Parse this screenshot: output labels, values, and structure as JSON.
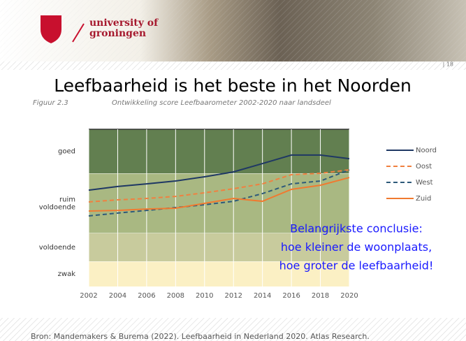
{
  "slide": {
    "logo_lines": [
      "university of",
      "groningen"
    ],
    "page_number": "| 18",
    "title": "Leefbaarheid is het beste in het Noorden",
    "source": "Bron: Mandemakers & Burema (2022). Leefbaarheid in Nederland 2020. Atlas Research."
  },
  "chart_data": {
    "type": "line",
    "figure_label": "Figuur 2.3",
    "title": "Ontwikkeling score Leefbaarometer 2002-2020 naar landsdeel",
    "x": [
      2002,
      2004,
      2006,
      2008,
      2010,
      2012,
      2014,
      2016,
      2018,
      2020
    ],
    "xlim": [
      2002,
      2020
    ],
    "xticks": [
      2002,
      2004,
      2006,
      2008,
      2010,
      2012,
      2014,
      2016,
      2018,
      2020
    ],
    "ylim": [
      0,
      10
    ],
    "bands": [
      {
        "label": [
          "zwak"
        ],
        "from": 0,
        "to": 1.6,
        "color": "#fbf0c4"
      },
      {
        "label": [
          "voldoende"
        ],
        "from": 1.6,
        "to": 3.4,
        "color": "#c8cb9d"
      },
      {
        "label": [
          "ruim",
          "voldoende"
        ],
        "from": 3.4,
        "to": 7.2,
        "color": "#a9b882"
      },
      {
        "label": [
          "goed"
        ],
        "from": 7.2,
        "to": 10,
        "color": "#627f50"
      }
    ],
    "series": [
      {
        "name": "Noord",
        "color": "#1f3864",
        "dash": false,
        "values": [
          6.13,
          6.36,
          6.53,
          6.71,
          6.98,
          7.29,
          7.82,
          8.36,
          8.36,
          8.13
        ]
      },
      {
        "name": "Oost",
        "color": "#f08040",
        "dash": true,
        "values": [
          5.38,
          5.51,
          5.6,
          5.73,
          5.96,
          6.22,
          6.53,
          7.11,
          7.2,
          7.42
        ]
      },
      {
        "name": "West",
        "color": "#2e5a7a",
        "dash": true,
        "values": [
          4.49,
          4.67,
          4.84,
          5.02,
          5.2,
          5.42,
          5.91,
          6.53,
          6.71,
          7.42
        ]
      },
      {
        "name": "Zuid",
        "color": "#f07a30",
        "dash": false,
        "values": [
          4.8,
          4.84,
          4.93,
          4.98,
          5.29,
          5.6,
          5.42,
          6.18,
          6.44,
          6.93
        ]
      }
    ],
    "annotation": [
      "Belangrijkste conclusie:",
      "hoe kleiner de woonplaats,",
      "hoe groter de leefbaarheid!"
    ],
    "annotation_color": "#1a1aff"
  }
}
